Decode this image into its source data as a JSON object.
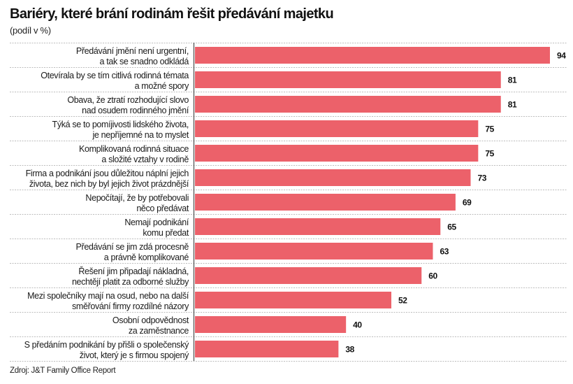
{
  "chart_data": {
    "type": "bar",
    "orientation": "horizontal",
    "title": "Bariéry, které brání rodinám řešit předávání majetku",
    "subtitle": "(podíl v %)",
    "source": "Zdroj: J&T Family Office Report",
    "xlabel": "",
    "ylabel": "",
    "xlim": [
      0,
      94
    ],
    "grid": false,
    "bar_color": "#EC616A",
    "categories": [
      [
        "Předávání jmění není urgentní,",
        "a tak se snadno odkládá"
      ],
      [
        "Otevírala by se tím citlivá rodinná témata",
        "a možné spory"
      ],
      [
        "Obava, že ztratí rozhodující slovo",
        "nad osudem rodinného jmění"
      ],
      [
        "Týká se to pomíjivosti lidského života,",
        "je nepříjemné na to myslet"
      ],
      [
        "Komplikovaná rodinná situace",
        "a složité vztahy v rodině"
      ],
      [
        "Firma a podnikání jsou důležitou náplní jejich",
        "života, bez nich by byl jejich život prázdnější"
      ],
      [
        "Nepočítají, že by potřebovali",
        "něco předávat"
      ],
      [
        "Nemají podnikání",
        "komu předat"
      ],
      [
        "Předávání se jim zdá procesně",
        "a právně komplikované"
      ],
      [
        "Řešení jim připadají nákladná,",
        "nechtějí platit za odborné služby"
      ],
      [
        "Mezi společníky mají na osud, nebo na další",
        "směřování firmy rozdílné názory"
      ],
      [
        "Osobní odpovědnost",
        "za zaměstnance"
      ],
      [
        "S předáním podnikání by přišli o společenský",
        "život, který je s firmou spojený"
      ]
    ],
    "values": [
      94,
      81,
      81,
      75,
      75,
      73,
      69,
      65,
      63,
      60,
      52,
      40,
      38
    ]
  }
}
